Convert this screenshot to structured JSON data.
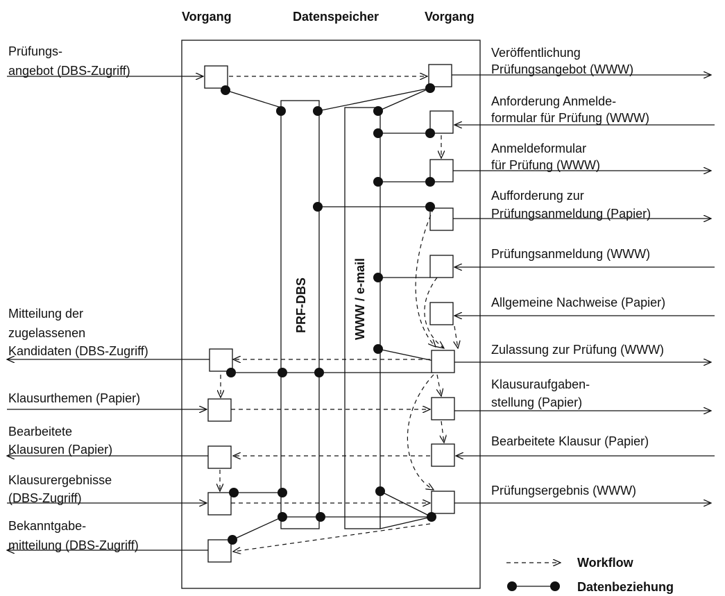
{
  "headers": [
    "Vorgang",
    "Datenspeicher",
    "Vorgang"
  ],
  "stores": [
    "PRF-DBS",
    "WWW / e-mail"
  ],
  "left_labels": [
    [
      "Prüfungs-",
      "angebot (DBS-Zugriff)"
    ],
    [
      "Mitteilung der",
      "zugelassenen",
      "Kandidaten (DBS-Zugriff)"
    ],
    [
      "Klausurthemen (Papier)"
    ],
    [
      "Bearbeitete",
      "Klausuren (Papier)"
    ],
    [
      "Klausurergebnisse",
      "(DBS-Zugriff)"
    ],
    [
      "Bekanntgabe-",
      "mitteilung (DBS-Zugriff)"
    ]
  ],
  "right_labels": [
    [
      "Veröffentlichung",
      "Prüfungsangebot (WWW)"
    ],
    [
      "Anforderung Anmelde-",
      "formular für Prüfung (WWW)"
    ],
    [
      "Anmeldeformular",
      "für Prüfung (WWW)"
    ],
    [
      "Aufforderung zur",
      "Prüfungsanmeldung (Papier)"
    ],
    [
      "Prüfungsanmeldung (WWW)"
    ],
    [
      "Allgemeine Nachweise (Papier)"
    ],
    [
      "Zulassung zur Prüfung (WWW)"
    ],
    [
      "Klausuraufgaben-",
      "stellung (Papier)"
    ],
    [
      "Bearbeitete Klausur (Papier)"
    ],
    [
      "Prüfungsergebnis (WWW)"
    ]
  ],
  "legend": [
    "Workflow",
    "Datenbeziehung"
  ]
}
